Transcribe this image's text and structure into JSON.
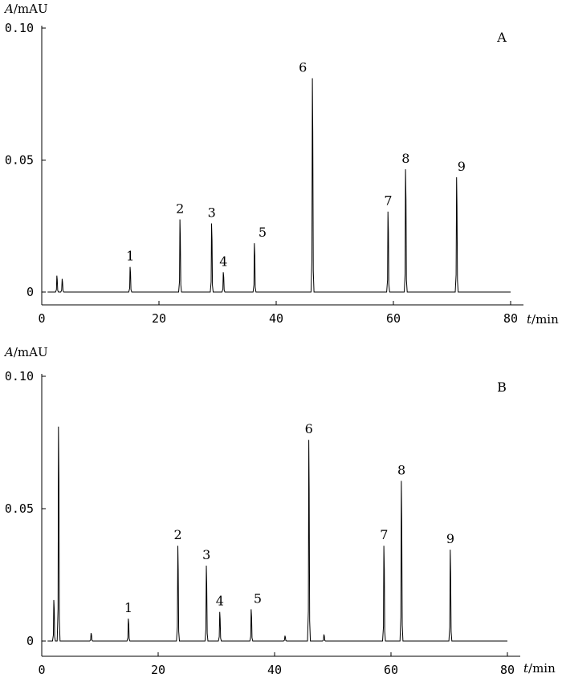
{
  "chart_data": [
    {
      "type": "line",
      "panel_label": "A",
      "ylabel": "A/mAU",
      "xlabel": "t/min",
      "xlim": [
        0,
        80
      ],
      "ylim": [
        0,
        0.1
      ],
      "xticks": [
        "0",
        "20",
        "40",
        "60",
        "80"
      ],
      "yticks": [
        "0",
        "0.05",
        "0.10"
      ],
      "peaks": [
        {
          "label": "1",
          "x": 15.1,
          "y": 0.0095
        },
        {
          "label": "2",
          "x": 23.6,
          "y": 0.0275
        },
        {
          "label": "3",
          "x": 29.0,
          "y": 0.026
        },
        {
          "label": "4",
          "x": 31.0,
          "y": 0.0075
        },
        {
          "label": "5",
          "x": 36.3,
          "y": 0.0185
        },
        {
          "label": "6",
          "x": 46.2,
          "y": 0.081
        },
        {
          "label": "7",
          "x": 59.1,
          "y": 0.0305
        },
        {
          "label": "8",
          "x": 62.1,
          "y": 0.0465
        },
        {
          "label": "9",
          "x": 70.8,
          "y": 0.0435
        }
      ],
      "minor_peaks": [
        {
          "x": 2.6,
          "y": 0.0062
        },
        {
          "x": 3.5,
          "y": 0.005
        }
      ]
    },
    {
      "type": "line",
      "panel_label": "B",
      "ylabel": "A/mAU",
      "xlabel": "t/min",
      "xlim": [
        0,
        80
      ],
      "ylim": [
        0,
        0.1
      ],
      "xticks": [
        "0",
        "20",
        "40",
        "60",
        "80"
      ],
      "yticks": [
        "0",
        "0.05",
        "0.10"
      ],
      "peaks": [
        {
          "label": "1",
          "x": 14.9,
          "y": 0.0085
        },
        {
          "label": "2",
          "x": 23.4,
          "y": 0.036
        },
        {
          "label": "3",
          "x": 28.3,
          "y": 0.0285
        },
        {
          "label": "4",
          "x": 30.6,
          "y": 0.011
        },
        {
          "label": "5",
          "x": 36.0,
          "y": 0.012
        },
        {
          "label": "6",
          "x": 45.9,
          "y": 0.076
        },
        {
          "label": "7",
          "x": 58.8,
          "y": 0.036
        },
        {
          "label": "8",
          "x": 61.8,
          "y": 0.0605
        },
        {
          "label": "9",
          "x": 70.2,
          "y": 0.0345
        }
      ],
      "minor_peaks": [
        {
          "x": 2.1,
          "y": 0.0155
        },
        {
          "x": 2.9,
          "y": 0.081
        },
        {
          "x": 8.5,
          "y": 0.003
        },
        {
          "x": 41.8,
          "y": 0.002
        },
        {
          "x": 48.5,
          "y": 0.0025
        }
      ]
    }
  ]
}
